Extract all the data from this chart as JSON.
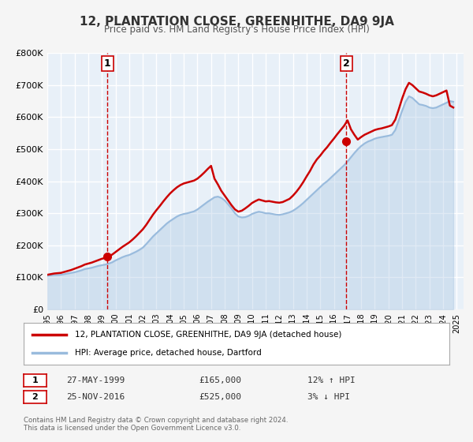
{
  "title": "12, PLANTATION CLOSE, GREENHITHE, DA9 9JA",
  "subtitle": "Price paid vs. HM Land Registry's House Price Index (HPI)",
  "xlabel": "",
  "ylabel": "",
  "ylim": [
    0,
    800000
  ],
  "yticks": [
    0,
    100000,
    200000,
    300000,
    400000,
    500000,
    600000,
    700000,
    800000
  ],
  "ytick_labels": [
    "£0",
    "£100K",
    "£200K",
    "£300K",
    "£400K",
    "£500K",
    "£600K",
    "£700K",
    "£800K"
  ],
  "xlim_start": 1995.0,
  "xlim_end": 2025.5,
  "xticks": [
    1995,
    1996,
    1997,
    1998,
    1999,
    2000,
    2001,
    2002,
    2003,
    2004,
    2005,
    2006,
    2007,
    2008,
    2009,
    2010,
    2011,
    2012,
    2013,
    2014,
    2015,
    2016,
    2017,
    2018,
    2019,
    2020,
    2021,
    2022,
    2023,
    2024,
    2025
  ],
  "bg_color": "#e8f0f8",
  "plot_bg_color": "#e8f0f8",
  "grid_color": "#ffffff",
  "red_line_color": "#cc0000",
  "blue_line_color": "#99bbdd",
  "marker1_date": 1999.4,
  "marker1_value": 165000,
  "marker2_date": 2016.9,
  "marker2_value": 525000,
  "legend_label_red": "12, PLANTATION CLOSE, GREENHITHE, DA9 9JA (detached house)",
  "legend_label_blue": "HPI: Average price, detached house, Dartford",
  "table_row1": [
    "1",
    "27-MAY-1999",
    "£165,000",
    "12% ↑ HPI"
  ],
  "table_row2": [
    "2",
    "25-NOV-2016",
    "£525,000",
    "3% ↓ HPI"
  ],
  "footer1": "Contains HM Land Registry data © Crown copyright and database right 2024.",
  "footer2": "This data is licensed under the Open Government Licence v3.0.",
  "vline1_x": 1999.4,
  "vline2_x": 2016.9,
  "hpi_data_x": [
    1995.0,
    1995.25,
    1995.5,
    1995.75,
    1996.0,
    1996.25,
    1996.5,
    1996.75,
    1997.0,
    1997.25,
    1997.5,
    1997.75,
    1998.0,
    1998.25,
    1998.5,
    1998.75,
    1999.0,
    1999.25,
    1999.5,
    1999.75,
    2000.0,
    2000.25,
    2000.5,
    2000.75,
    2001.0,
    2001.25,
    2001.5,
    2001.75,
    2002.0,
    2002.25,
    2002.5,
    2002.75,
    2003.0,
    2003.25,
    2003.5,
    2003.75,
    2004.0,
    2004.25,
    2004.5,
    2004.75,
    2005.0,
    2005.25,
    2005.5,
    2005.75,
    2006.0,
    2006.25,
    2006.5,
    2006.75,
    2007.0,
    2007.25,
    2007.5,
    2007.75,
    2008.0,
    2008.25,
    2008.5,
    2008.75,
    2009.0,
    2009.25,
    2009.5,
    2009.75,
    2010.0,
    2010.25,
    2010.5,
    2010.75,
    2011.0,
    2011.25,
    2011.5,
    2011.75,
    2012.0,
    2012.25,
    2012.5,
    2012.75,
    2013.0,
    2013.25,
    2013.5,
    2013.75,
    2014.0,
    2014.25,
    2014.5,
    2014.75,
    2015.0,
    2015.25,
    2015.5,
    2015.75,
    2016.0,
    2016.25,
    2016.5,
    2016.75,
    2017.0,
    2017.25,
    2017.5,
    2017.75,
    2018.0,
    2018.25,
    2018.5,
    2018.75,
    2019.0,
    2019.25,
    2019.5,
    2019.75,
    2020.0,
    2020.25,
    2020.5,
    2020.75,
    2021.0,
    2021.25,
    2021.5,
    2021.75,
    2022.0,
    2022.25,
    2022.5,
    2022.75,
    2023.0,
    2023.25,
    2023.5,
    2023.75,
    2024.0,
    2024.25,
    2024.5,
    2024.75
  ],
  "hpi_data_y": [
    105000,
    106000,
    107000,
    107500,
    108000,
    110000,
    112000,
    114000,
    116000,
    119000,
    122000,
    126000,
    128000,
    130000,
    133000,
    136000,
    138000,
    140000,
    143000,
    147000,
    153000,
    158000,
    163000,
    167000,
    170000,
    175000,
    180000,
    186000,
    193000,
    204000,
    216000,
    228000,
    238000,
    248000,
    258000,
    268000,
    276000,
    283000,
    290000,
    295000,
    298000,
    300000,
    303000,
    306000,
    312000,
    320000,
    328000,
    336000,
    343000,
    350000,
    352000,
    348000,
    340000,
    328000,
    315000,
    300000,
    290000,
    287000,
    288000,
    292000,
    298000,
    302000,
    305000,
    303000,
    300000,
    300000,
    298000,
    296000,
    295000,
    297000,
    300000,
    303000,
    308000,
    315000,
    323000,
    332000,
    342000,
    352000,
    362000,
    372000,
    382000,
    392000,
    400000,
    410000,
    420000,
    430000,
    440000,
    450000,
    462000,
    475000,
    488000,
    500000,
    510000,
    518000,
    524000,
    528000,
    533000,
    536000,
    538000,
    540000,
    542000,
    545000,
    560000,
    590000,
    620000,
    648000,
    665000,
    660000,
    650000,
    640000,
    638000,
    635000,
    630000,
    628000,
    630000,
    635000,
    640000,
    645000,
    650000,
    648000
  ],
  "red_data_x": [
    1995.0,
    1995.25,
    1995.5,
    1995.75,
    1996.0,
    1996.25,
    1996.5,
    1996.75,
    1997.0,
    1997.25,
    1997.5,
    1997.75,
    1998.0,
    1998.25,
    1998.5,
    1998.75,
    1999.0,
    1999.25,
    1999.5,
    1999.75,
    2000.0,
    2000.25,
    2000.5,
    2000.75,
    2001.0,
    2001.25,
    2001.5,
    2001.75,
    2002.0,
    2002.25,
    2002.5,
    2002.75,
    2003.0,
    2003.25,
    2003.5,
    2003.75,
    2004.0,
    2004.25,
    2004.5,
    2004.75,
    2005.0,
    2005.25,
    2005.5,
    2005.75,
    2006.0,
    2006.25,
    2006.5,
    2006.75,
    2007.0,
    2007.25,
    2007.5,
    2007.75,
    2008.0,
    2008.25,
    2008.5,
    2008.75,
    2009.0,
    2009.25,
    2009.5,
    2009.75,
    2010.0,
    2010.25,
    2010.5,
    2010.75,
    2011.0,
    2011.25,
    2011.5,
    2011.75,
    2012.0,
    2012.25,
    2012.5,
    2012.75,
    2013.0,
    2013.25,
    2013.5,
    2013.75,
    2014.0,
    2014.25,
    2014.5,
    2014.75,
    2015.0,
    2015.25,
    2015.5,
    2015.75,
    2016.0,
    2016.25,
    2016.5,
    2016.75,
    2017.0,
    2017.25,
    2017.5,
    2017.75,
    2018.0,
    2018.25,
    2018.5,
    2018.75,
    2019.0,
    2019.25,
    2019.5,
    2019.75,
    2020.0,
    2020.25,
    2020.5,
    2020.75,
    2021.0,
    2021.25,
    2021.5,
    2021.75,
    2022.0,
    2022.25,
    2022.5,
    2022.75,
    2023.0,
    2023.25,
    2023.5,
    2023.75,
    2024.0,
    2024.25,
    2024.5,
    2024.75
  ],
  "red_data_y": [
    108000,
    110000,
    112000,
    113000,
    114000,
    117000,
    120000,
    123000,
    127000,
    131000,
    135000,
    140000,
    143000,
    146000,
    150000,
    154000,
    158000,
    161000,
    165000,
    171000,
    179000,
    187000,
    195000,
    202000,
    209000,
    218000,
    228000,
    239000,
    250000,
    264000,
    280000,
    296000,
    310000,
    323000,
    337000,
    350000,
    362000,
    372000,
    381000,
    388000,
    393000,
    396000,
    399000,
    402000,
    408000,
    417000,
    427000,
    438000,
    448000,
    408000,
    390000,
    370000,
    355000,
    340000,
    325000,
    312000,
    305000,
    308000,
    315000,
    323000,
    332000,
    338000,
    343000,
    340000,
    337000,
    338000,
    336000,
    334000,
    333000,
    335000,
    340000,
    345000,
    355000,
    367000,
    381000,
    397000,
    415000,
    432000,
    452000,
    468000,
    480000,
    494000,
    506000,
    520000,
    533000,
    547000,
    560000,
    573000,
    590000,
    562000,
    545000,
    530000,
    538000,
    545000,
    550000,
    555000,
    560000,
    563000,
    565000,
    568000,
    571000,
    575000,
    592000,
    624000,
    658000,
    687000,
    707000,
    700000,
    690000,
    680000,
    677000,
    673000,
    668000,
    665000,
    668000,
    673000,
    678000,
    683000,
    636000,
    630000
  ]
}
